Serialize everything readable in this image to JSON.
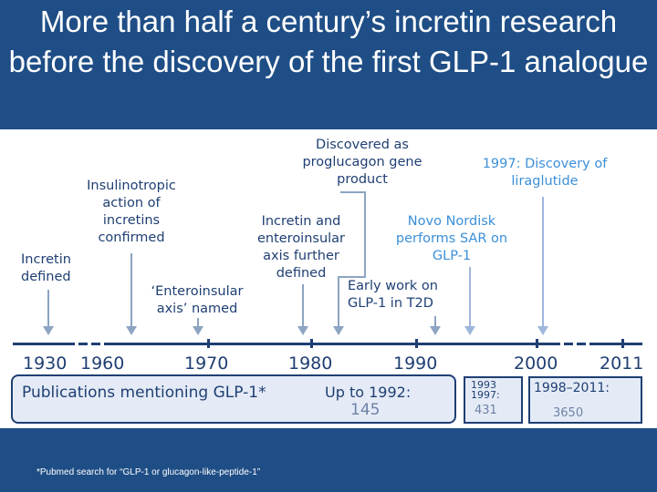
{
  "title": "More than half a century’s incretin research before the discovery of the first GLP-1 analogue",
  "footnote": "*Pubmed search for “GLP-1 or glucagon-like-peptide-1”",
  "events": {
    "incretin_defined": [
      "Incretin",
      "defined"
    ],
    "insulinotropic": [
      "Insulinotropic",
      "action of",
      "incretins",
      "confirmed"
    ],
    "enteroinsular": [
      "‘Enteroinsular",
      "axis’ named"
    ],
    "incretin_axis": [
      "Incretin and",
      "enteroinsular",
      "axis further",
      "defined"
    ],
    "proglucagon": [
      "Discovered as",
      "proglucagon gene",
      "product"
    ],
    "early_work": [
      "Early work on",
      "GLP-1 in T2D"
    ],
    "novo_sar": [
      "Novo Nordisk",
      "performs SAR on",
      "GLP-1"
    ],
    "liraglutide": [
      "1997: Discovery of",
      "liraglutide"
    ]
  },
  "years": [
    "1930",
    "1960",
    "1970",
    "1980",
    "1990",
    "2000",
    "2011"
  ],
  "publications": {
    "label": "Publications mentioning GLP-1*",
    "p1_label": "Up to 1992:",
    "p1_value": "145",
    "p2_label_a": "1993",
    "p2_label_b": "1997:",
    "p2_value": "431",
    "p3_label": "1998–2011:",
    "p3_value": "3650"
  },
  "colors": {
    "background": "#1f4e86",
    "dark_text": "#1f3f73",
    "highlight_text": "#3b8fd8",
    "box_fill": "#e4ebf6"
  }
}
